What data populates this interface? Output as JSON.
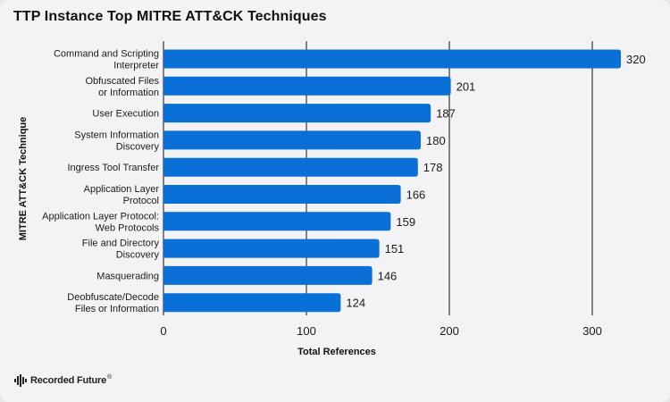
{
  "header": {
    "title": "TTP Instance Top MITRE ATT&CK Techniques"
  },
  "brand": {
    "name": "Recorded Future",
    "reg": "®"
  },
  "colors": {
    "bar": "#0a6fd6",
    "grid": "#111111",
    "background": "#f3f3f5"
  },
  "chart_data": {
    "type": "bar",
    "orientation": "horizontal",
    "title": "TTP Instance Top MITRE ATT&CK Techniques",
    "xlabel": "Total References",
    "ylabel": "MITRE ATT&CK Technique",
    "xlim": [
      0,
      350
    ],
    "xticks": [
      0,
      100,
      200,
      300
    ],
    "grid": true,
    "categories": [
      [
        "Command and Scripting",
        "Interpreter"
      ],
      [
        "Obfuscated Files",
        "or Information"
      ],
      [
        "User Execution"
      ],
      [
        "System Information",
        "Discovery"
      ],
      [
        "Ingress Tool Transfer"
      ],
      [
        "Application Layer",
        "Protocol"
      ],
      [
        "Application Layer Protocol:",
        "Web Protocols"
      ],
      [
        "File and Directory",
        "Discovery"
      ],
      [
        "Masquerading"
      ],
      [
        "Deobfuscate/Decode",
        "Files or Information"
      ]
    ],
    "values": [
      320,
      201,
      187,
      180,
      178,
      166,
      159,
      151,
      146,
      124
    ]
  }
}
